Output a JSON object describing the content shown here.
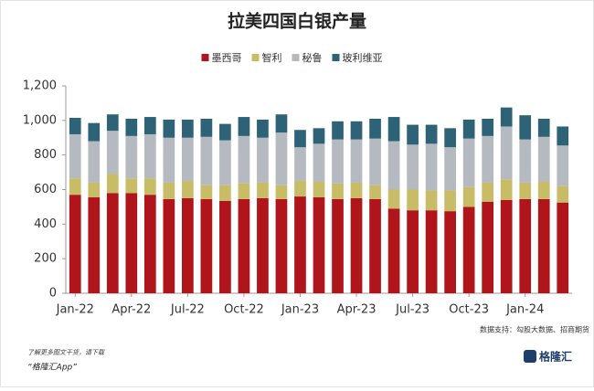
{
  "chart_data": {
    "type": "stacked-bar",
    "title": "拉美四国白银产量",
    "categories": [
      "Jan-22",
      null,
      null,
      "Apr-22",
      null,
      null,
      "Jul-22",
      null,
      null,
      "Oct-22",
      null,
      null,
      "Jan-23",
      null,
      null,
      "Apr-23",
      null,
      null,
      "Jul-23",
      null,
      null,
      "Oct-23",
      null,
      null,
      "Jan-24",
      null,
      null
    ],
    "series": [
      {
        "name": "墨西哥",
        "color": "#b0151c",
        "values": [
          570,
          555,
          580,
          580,
          570,
          545,
          550,
          545,
          535,
          545,
          550,
          545,
          560,
          555,
          545,
          550,
          545,
          490,
          480,
          480,
          475,
          500,
          530,
          540,
          545,
          545,
          525
        ]
      },
      {
        "name": "智利",
        "color": "#c8bd66",
        "values": [
          95,
          85,
          110,
          85,
          95,
          95,
          100,
          80,
          90,
          90,
          90,
          80,
          90,
          90,
          90,
          90,
          80,
          110,
          120,
          115,
          120,
          115,
          110,
          120,
          95,
          100,
          95
        ]
      },
      {
        "name": "秘鲁",
        "color": "#b5b9c0",
        "values": [
          255,
          240,
          250,
          245,
          255,
          260,
          250,
          280,
          260,
          275,
          260,
          305,
          195,
          220,
          255,
          250,
          270,
          280,
          260,
          270,
          250,
          280,
          270,
          305,
          250,
          260,
          235
        ]
      },
      {
        "name": "玻利维亚",
        "color": "#2e6377",
        "values": [
          95,
          105,
          95,
          100,
          100,
          105,
          105,
          105,
          95,
          110,
          105,
          105,
          100,
          90,
          105,
          105,
          115,
          140,
          115,
          110,
          110,
          110,
          100,
          110,
          140,
          105,
          110
        ]
      }
    ],
    "ylim": [
      0,
      1200
    ],
    "yticks": [
      0,
      200,
      400,
      600,
      800,
      {
        "value": 1000,
        "label": "1,000"
      },
      {
        "value": 1200,
        "label": "1,200"
      }
    ],
    "grid": false,
    "legend": "top",
    "source": "数据支持：勾股大数据、招商期货"
  },
  "footer": {
    "note": "了解更多图文干货，请下载",
    "app": "“格隆汇App”",
    "logo": "格隆汇"
  }
}
